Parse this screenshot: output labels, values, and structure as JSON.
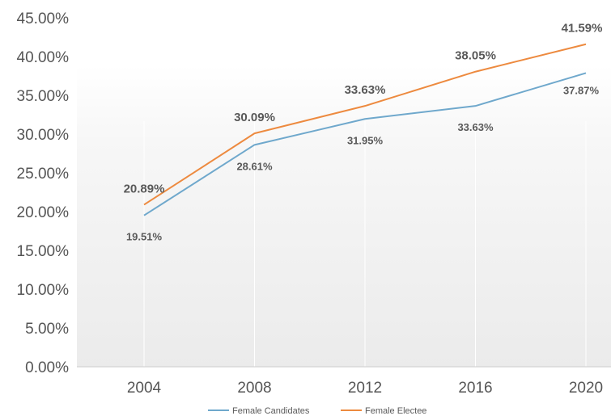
{
  "chart_data": {
    "type": "line",
    "categories": [
      "2004",
      "2008",
      "2012",
      "2016",
      "2020"
    ],
    "series": [
      {
        "name": "Female Candidates",
        "values": [
          19.51,
          28.61,
          31.95,
          33.63,
          37.87
        ],
        "labels": [
          "19.51%",
          "28.61%",
          "31.95%",
          "33.63%",
          "37.87%"
        ],
        "color": "#6FA8CC"
      },
      {
        "name": "Female Electee",
        "values": [
          20.89,
          30.09,
          33.63,
          38.05,
          41.59
        ],
        "labels": [
          "20.89%",
          "30.09%",
          "33.63%",
          "38.05%",
          "41.59%"
        ],
        "color": "#ED8A3F"
      }
    ],
    "ylim": [
      0,
      45
    ],
    "yticks": [
      "0.00%",
      "5.00%",
      "10.00%",
      "15.00%",
      "20.00%",
      "25.00%",
      "30.00%",
      "35.00%",
      "40.00%",
      "45.00%"
    ],
    "grid": "vertical",
    "legend": "bottom-center",
    "title": "",
    "xlabel": "",
    "ylabel": ""
  }
}
